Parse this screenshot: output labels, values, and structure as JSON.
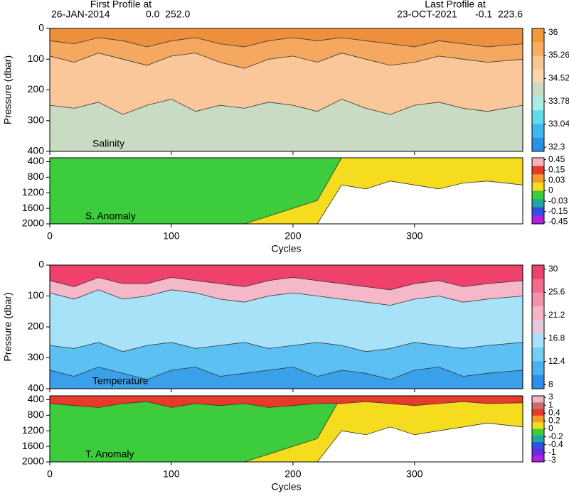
{
  "header": {
    "first_label": "First Profile at",
    "first_date": "26-JAN-2014",
    "first_pos": "0.0  252.0",
    "last_label": "Last Profile at",
    "last_date": "23-OCT-2021",
    "last_pos": "-0.1  223.6"
  },
  "chart_data": [
    {
      "type": "contour",
      "ylabel": "Pressure (dbar)",
      "label": "Salinity",
      "background": "#c9dcc3",
      "xlim": [
        0,
        389
      ],
      "xticks": [
        0,
        100,
        200,
        300
      ],
      "ylim": [
        400,
        0
      ],
      "yticks": [
        0,
        100,
        200,
        300,
        400
      ],
      "x": [
        0,
        20,
        40,
        60,
        80,
        100,
        120,
        140,
        160,
        180,
        200,
        220,
        240,
        260,
        280,
        300,
        320,
        340,
        360,
        389
      ],
      "series": [
        {
          "color": "#f9c79a",
          "values": [
            250,
            260,
            240,
            280,
            250,
            230,
            270,
            250,
            260,
            240,
            250,
            270,
            230,
            260,
            280,
            250,
            240,
            260,
            270,
            250
          ]
        },
        {
          "color": "#f5a860",
          "values": [
            90,
            110,
            80,
            100,
            120,
            90,
            80,
            110,
            130,
            100,
            90,
            110,
            80,
            100,
            120,
            110,
            90,
            100,
            110,
            100
          ]
        },
        {
          "color": "#ee8f3c",
          "values": [
            40,
            50,
            30,
            40,
            60,
            40,
            30,
            50,
            60,
            40,
            30,
            40,
            30,
            40,
            50,
            60,
            40,
            50,
            60,
            50
          ]
        }
      ],
      "colorbar": {
        "ticks": [
          36,
          35.26,
          34.52,
          33.78,
          33.04,
          32.3
        ],
        "colors": [
          "#f59a3a",
          "#f7ae60",
          "#f9c590",
          "#f9d6b0",
          "#c9dcc3",
          "#a9ece6",
          "#5fdcec",
          "#3cb8ee",
          "#2a92e6"
        ]
      }
    },
    {
      "type": "contour",
      "xlabel": "Cycles",
      "label": "S. Anomaly",
      "background": "#ffffff",
      "xlim": [
        0,
        389
      ],
      "xticks": [
        0,
        100,
        200,
        300
      ],
      "ylim": [
        2000,
        300
      ],
      "yticks": [
        400,
        800,
        1200,
        1600,
        2000
      ],
      "x": [
        0,
        20,
        40,
        60,
        80,
        100,
        120,
        140,
        160,
        180,
        200,
        220,
        240,
        260,
        280,
        300,
        320,
        340,
        360,
        389
      ],
      "series": [
        {
          "color": "#f5dc1e",
          "values": [
            2000,
            2000,
            2000,
            2000,
            2000,
            2000,
            2000,
            2000,
            2000,
            2000,
            2000,
            2000,
            1000,
            1100,
            900,
            1000,
            1100,
            950,
            900,
            1000
          ]
        },
        {
          "color": "#3ccc3c",
          "values": [
            2000,
            2000,
            2000,
            2000,
            2000,
            2000,
            2000,
            2000,
            2000,
            1800,
            1600,
            1400,
            300,
            300,
            300,
            300,
            300,
            300,
            300,
            300
          ]
        }
      ],
      "colorbar": {
        "ticks": [
          0.45,
          0.15,
          0.03,
          0,
          -0.03,
          -0.15,
          -0.45
        ],
        "colors": [
          "#f0b4c0",
          "#e83a2a",
          "#f59a2a",
          "#f5dc1e",
          "#3ccc3c",
          "#20a8a0",
          "#3050e0",
          "#b020e0"
        ]
      }
    },
    {
      "type": "contour",
      "ylabel": "Pressure (dbar)",
      "label": "Temperature",
      "background": "#3aa0ea",
      "xlim": [
        0,
        389
      ],
      "xticks": [
        0,
        100,
        200,
        300
      ],
      "ylim": [
        400,
        0
      ],
      "yticks": [
        0,
        100,
        200,
        300,
        400
      ],
      "x": [
        0,
        20,
        40,
        60,
        80,
        100,
        120,
        140,
        160,
        180,
        200,
        220,
        240,
        260,
        280,
        300,
        320,
        340,
        360,
        389
      ],
      "series": [
        {
          "color": "#5cc0f2",
          "values": [
            340,
            360,
            330,
            350,
            370,
            340,
            330,
            360,
            350,
            340,
            330,
            360,
            340,
            350,
            370,
            340,
            330,
            360,
            350,
            340
          ]
        },
        {
          "color": "#a8e2f8",
          "values": [
            260,
            270,
            250,
            280,
            260,
            250,
            270,
            260,
            250,
            270,
            260,
            250,
            260,
            280,
            270,
            250,
            260,
            270,
            260,
            250
          ]
        },
        {
          "color": "#f4b8c8",
          "values": [
            90,
            110,
            80,
            110,
            100,
            80,
            90,
            110,
            120,
            100,
            90,
            100,
            110,
            120,
            130,
            110,
            100,
            120,
            110,
            100
          ]
        },
        {
          "color": "#f0406c",
          "values": [
            50,
            70,
            40,
            60,
            60,
            40,
            50,
            60,
            70,
            50,
            40,
            50,
            60,
            70,
            80,
            60,
            50,
            70,
            60,
            50
          ]
        }
      ],
      "colorbar": {
        "ticks": [
          30,
          25.6,
          21.2,
          16.8,
          12.4,
          8
        ],
        "colors": [
          "#f0406c",
          "#f26a8c",
          "#f490aa",
          "#f4b4c6",
          "#e6c8dc",
          "#a8e2f8",
          "#74cdf4",
          "#4cb2ee",
          "#2a92e6"
        ]
      }
    },
    {
      "type": "contour",
      "xlabel": "Cycles",
      "label": "T. Anomaly",
      "background": "#ffffff",
      "xlim": [
        0,
        389
      ],
      "xticks": [
        0,
        100,
        200,
        300
      ],
      "ylim": [
        2000,
        300
      ],
      "yticks": [
        400,
        800,
        1200,
        1600,
        2000
      ],
      "x": [
        0,
        20,
        40,
        60,
        80,
        100,
        120,
        140,
        160,
        180,
        200,
        220,
        240,
        260,
        280,
        300,
        320,
        340,
        360,
        389
      ],
      "series": [
        {
          "color": "#f5dc1e",
          "values": [
            2000,
            2000,
            2000,
            2000,
            2000,
            2000,
            2000,
            2000,
            2000,
            2000,
            2000,
            2000,
            1200,
            1300,
            1100,
            1300,
            1200,
            1100,
            1000,
            1100
          ]
        },
        {
          "color": "#3ccc3c",
          "values": [
            2000,
            2000,
            2000,
            2000,
            2000,
            2000,
            2000,
            2000,
            2000,
            1800,
            1600,
            1400,
            300,
            300,
            300,
            300,
            300,
            300,
            300,
            300
          ]
        },
        {
          "color": "#e83a2a",
          "values": [
            500,
            550,
            600,
            500,
            450,
            600,
            500,
            550,
            500,
            600,
            550,
            500,
            500,
            450,
            500,
            550,
            500,
            450,
            500,
            480
          ]
        }
      ],
      "colorbar": {
        "ticks": [
          3,
          1,
          0.4,
          0.2,
          0,
          -0.2,
          -0.4,
          -1,
          -3
        ],
        "colors": [
          "#f0b4c0",
          "#c87070",
          "#e83a2a",
          "#f59a2a",
          "#f5dc1e",
          "#3ccc3c",
          "#20a8a0",
          "#3050e0",
          "#6030e0",
          "#b020e0"
        ]
      }
    }
  ]
}
